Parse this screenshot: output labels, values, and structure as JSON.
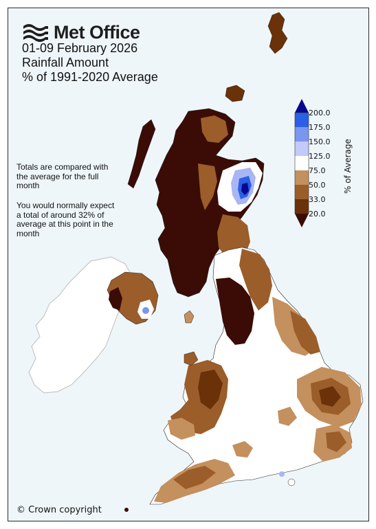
{
  "logo": {
    "text": "Met Office",
    "mark_icon": "met-office-waves-icon"
  },
  "titles": {
    "period": "01-09 February 2026",
    "metric": "Rainfall Amount",
    "baseline": "% of 1991-2020 Average"
  },
  "notes": {
    "comparison": "Totals are compared with the average for the full month",
    "expected": "You would normally expect a total of around 32% of average at this point in the month"
  },
  "copyright": "© Crown copyright",
  "colorbar": {
    "label": "% of Average",
    "ticks": [
      "200.0",
      "175.0",
      "150.0",
      "125.0",
      "75.0",
      "50.0",
      "33.0",
      "20.0"
    ],
    "colors": {
      "above_200": "#08088f",
      "175_200": "#2a5fe6",
      "150_175": "#7b96ee",
      "125_150": "#c3c9f8",
      "75_125": "#ffffff",
      "50_75": "#c4905d",
      "33_50": "#9b5d2a",
      "20_33": "#6b3108",
      "below_20": "#3a0c05"
    }
  },
  "map_colors": {
    "very_dry": "#3a0c05",
    "dry": "#6b3108",
    "moderately_dry": "#9b5d2a",
    "slightly_dry": "#c4905d",
    "normal": "#ffffff",
    "wet": "#a9b6f3",
    "very_wet": "#2a5fe6",
    "ireland": "#ffffff",
    "sea": "#eff6fa"
  }
}
